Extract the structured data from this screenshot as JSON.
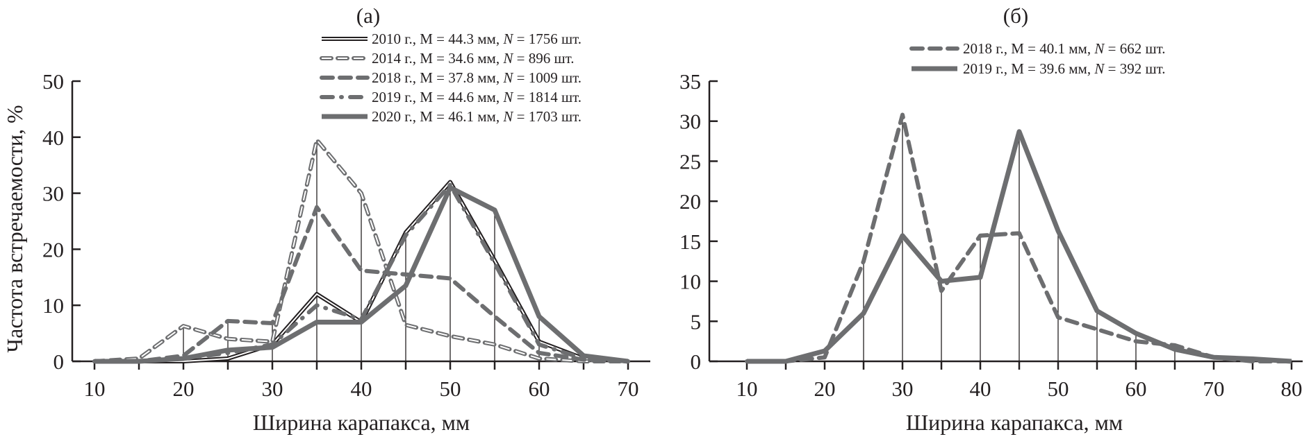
{
  "chart_data": [
    {
      "type": "line",
      "title": "(а)",
      "xlabel": "Ширина карапакса, мм",
      "ylabel": "Частота встречаемости, %",
      "xlim": [
        10,
        70
      ],
      "ylim": [
        0,
        50
      ],
      "xticks": [
        10,
        20,
        30,
        40,
        50,
        60,
        70
      ],
      "yticks": [
        0,
        10,
        20,
        30,
        40,
        50
      ],
      "grid": false,
      "legend_position": "top-right",
      "x": [
        10,
        15,
        20,
        25,
        30,
        35,
        40,
        45,
        50,
        55,
        60,
        65,
        70
      ],
      "series": [
        {
          "name": "2010",
          "legend_prefix": "2010 г., M = 44.3 мм, ",
          "legend_n": "N",
          "legend_suffix": " = 1756 шт.",
          "style": "double-line",
          "color": "#231f20",
          "values": [
            0,
            0,
            0,
            0.5,
            3,
            12,
            7,
            23,
            32,
            18,
            3.5,
            0.5,
            0
          ]
        },
        {
          "name": "2014",
          "legend_prefix": "2014 г., M = 34.6 мм, ",
          "legend_n": "N",
          "legend_suffix": " = 896 шт.",
          "style": "hollow-dashed",
          "color": "#6d6e70",
          "values": [
            0,
            0.5,
            6.3,
            4,
            3.5,
            39.5,
            30,
            6.5,
            4.5,
            3,
            0.5,
            0,
            0
          ]
        },
        {
          "name": "2018",
          "legend_prefix": "2018 г., M = 37.8 мм, ",
          "legend_n": "N",
          "legend_suffix": " = 1009 шт.",
          "style": "dashed",
          "color": "#6d6e70",
          "values": [
            0,
            0,
            1,
            7.2,
            6.8,
            27.5,
            16.2,
            15.5,
            14.8,
            8,
            1.5,
            0.3,
            0
          ]
        },
        {
          "name": "2019",
          "legend_prefix": "2019 г., M = 44.6 мм, ",
          "legend_n": "N",
          "legend_suffix": " = 1814 шт.",
          "style": "dash-dot",
          "color": "#6d6e70",
          "values": [
            0,
            0,
            0.5,
            1.5,
            3,
            10,
            7.5,
            22.5,
            31.5,
            17.5,
            3,
            0.5,
            0
          ]
        },
        {
          "name": "2020",
          "legend_prefix": "2020 г., M = 46.1 мм, ",
          "legend_n": "N",
          "legend_suffix": " = 1703 шт.",
          "style": "thick-solid",
          "color": "#6d6e70",
          "values": [
            0,
            0,
            0.5,
            2,
            2.5,
            7,
            7,
            13.5,
            31,
            27,
            8,
            1,
            0
          ]
        }
      ]
    },
    {
      "type": "line",
      "title": "(б)",
      "xlabel": "Ширина карапакса, мм",
      "ylabel": "",
      "xlim": [
        10,
        80
      ],
      "ylim": [
        0,
        35
      ],
      "xticks": [
        10,
        20,
        30,
        40,
        50,
        60,
        70,
        80
      ],
      "yticks": [
        0,
        5,
        10,
        15,
        20,
        25,
        30,
        35
      ],
      "grid": false,
      "legend_position": "top-right",
      "x": [
        10,
        15,
        20,
        25,
        30,
        35,
        40,
        45,
        50,
        55,
        60,
        65,
        70,
        75,
        80
      ],
      "series": [
        {
          "name": "2018",
          "legend_prefix": "2018 г., M = 40.1 мм, ",
          "legend_n": "N",
          "legend_suffix": " = 662 шт.",
          "style": "dashed",
          "color": "#6d6e70",
          "values": [
            0,
            0,
            0.5,
            12.5,
            30.8,
            8.8,
            15.7,
            16,
            5.5,
            4,
            2.5,
            2,
            0.5,
            0,
            0
          ]
        },
        {
          "name": "2019",
          "legend_prefix": "2019 г., M = 39.6 мм, ",
          "legend_n": "N",
          "legend_suffix": " = 392 шт.",
          "style": "thick-solid",
          "color": "#6d6e70",
          "values": [
            0,
            0,
            1.3,
            6,
            15.7,
            10,
            10.5,
            28.7,
            16.3,
            6.3,
            3.5,
            1.5,
            0.5,
            0.3,
            0
          ]
        }
      ]
    }
  ]
}
